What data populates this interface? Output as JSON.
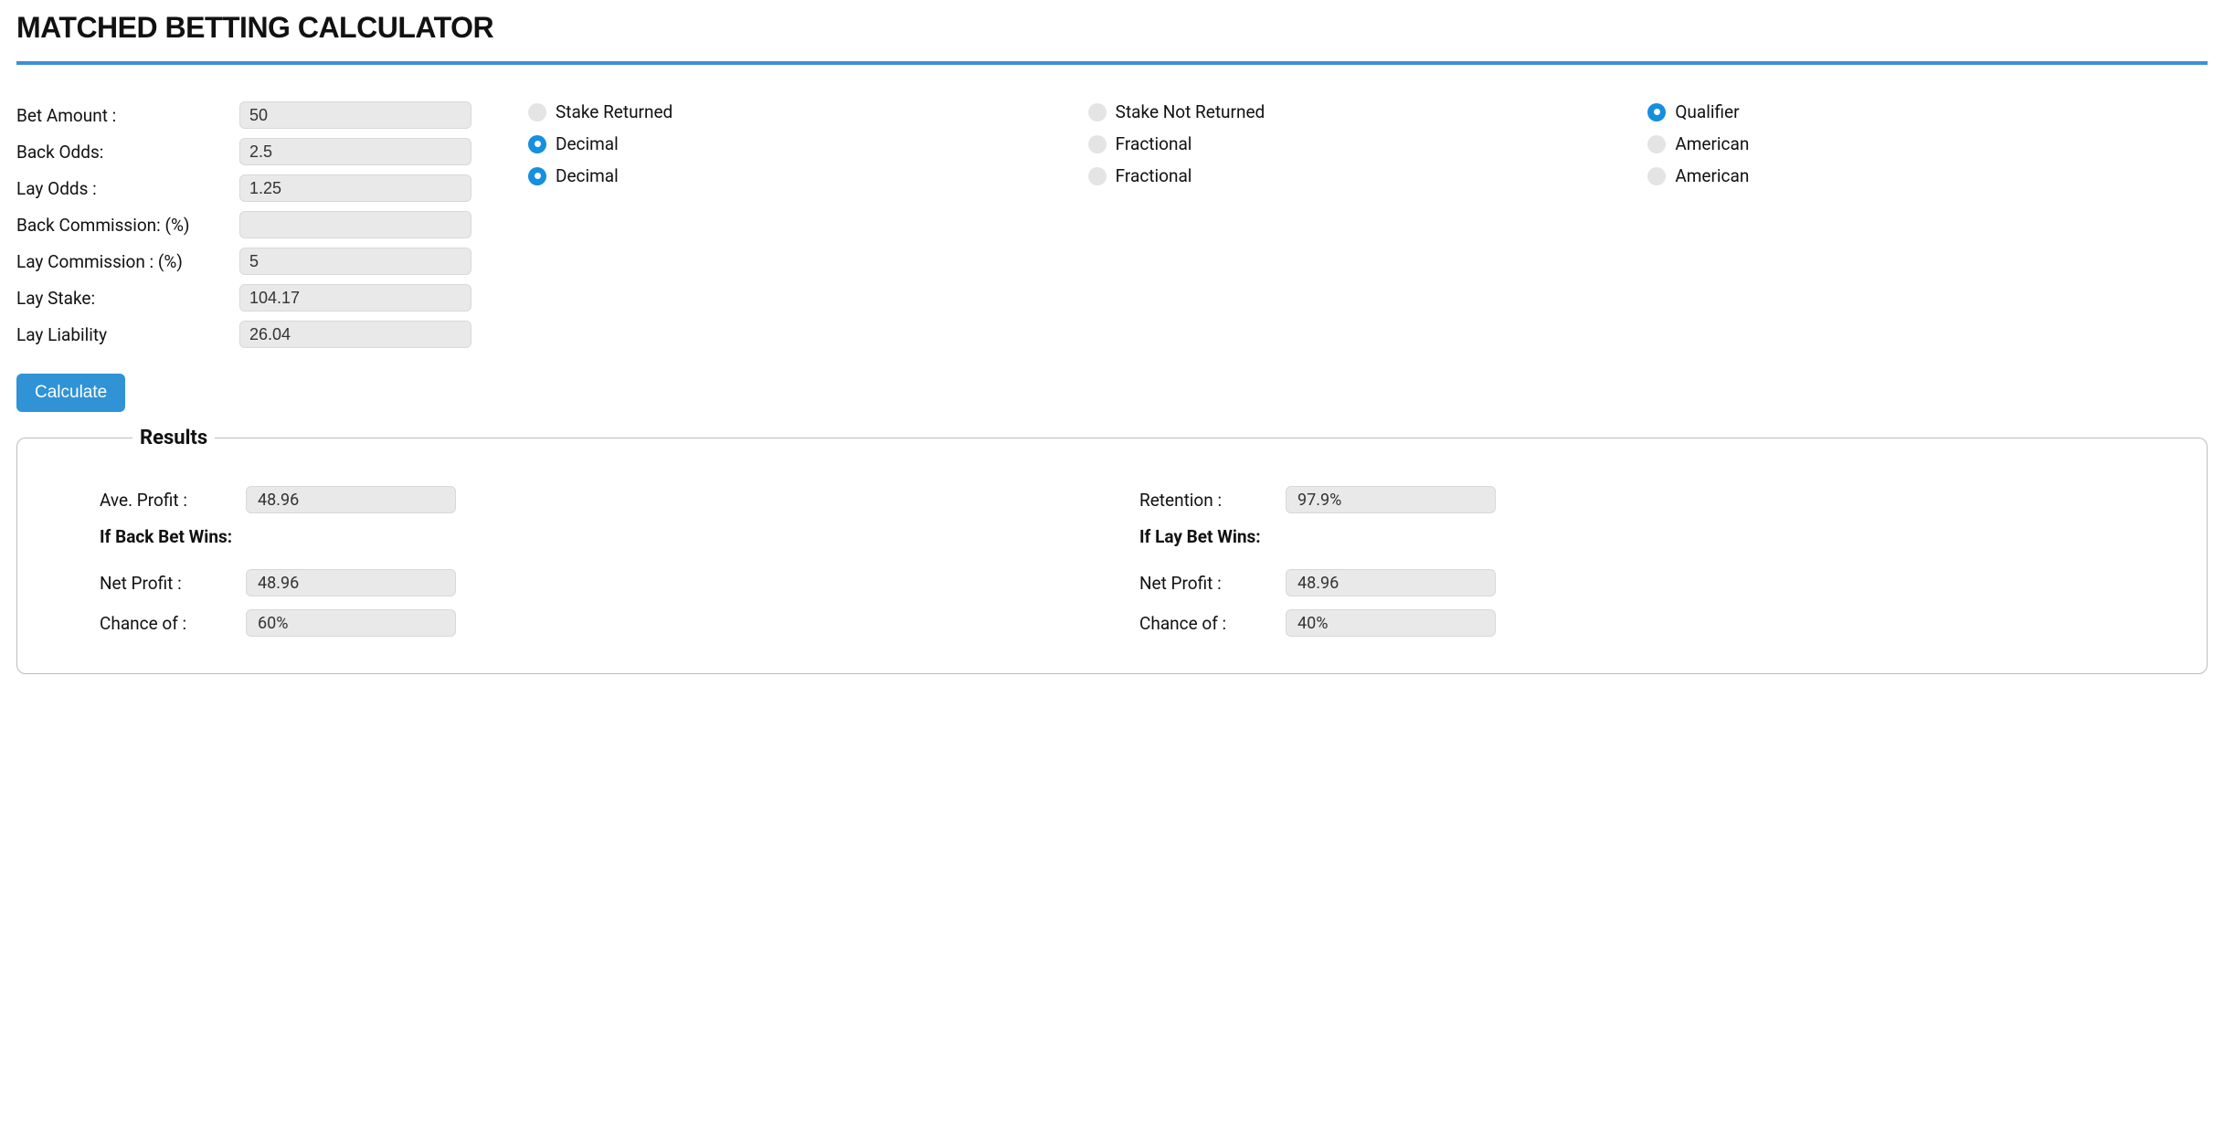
{
  "title": "MATCHED BETTING CALCULATOR",
  "colors": {
    "accent": "#3d8fd6",
    "button": "#2f93d6",
    "radio_on": "#158fe0",
    "radio_off": "#e4e4e4",
    "input_bg": "#e9e9e9",
    "border": "#bcbcbc"
  },
  "inputs": {
    "bet_amount_label": "Bet Amount :",
    "bet_amount_value": "50",
    "back_odds_label": "Back Odds:",
    "back_odds_value": "2.5",
    "lay_odds_label": "Lay Odds :",
    "lay_odds_value": "1.25",
    "back_commission_label": "Back Commission: (%)",
    "back_commission_value": "",
    "lay_commission_label": "Lay Commission : (%)",
    "lay_commission_value": "5",
    "lay_stake_label": "Lay Stake:",
    "lay_stake_value": "104.17",
    "lay_liability_label": "Lay Liability",
    "lay_liability_value": "26.04"
  },
  "radio_groups": {
    "stake": {
      "options": [
        "Stake Returned",
        "Stake Not Returned",
        "Qualifier"
      ],
      "selected_index": 2
    },
    "back_odds_format": {
      "options": [
        "Decimal",
        "Fractional",
        "American"
      ],
      "selected_index": 0
    },
    "lay_odds_format": {
      "options": [
        "Decimal",
        "Fractional",
        "American"
      ],
      "selected_index": 0
    }
  },
  "calculate_label": "Calculate",
  "results": {
    "legend": "Results",
    "ave_profit_label": "Ave. Profit :",
    "ave_profit_value": "48.96",
    "retention_label": "Retention :",
    "retention_value": "97.9%",
    "back_wins_heading": "If Back Bet Wins:",
    "lay_wins_heading": "If Lay Bet Wins:",
    "back_net_profit_label": "Net Profit :",
    "back_net_profit_value": "48.96",
    "back_chance_label": "Chance of :",
    "back_chance_value": "60%",
    "lay_net_profit_label": "Net Profit :",
    "lay_net_profit_value": "48.96",
    "lay_chance_label": "Chance of :",
    "lay_chance_value": "40%"
  }
}
